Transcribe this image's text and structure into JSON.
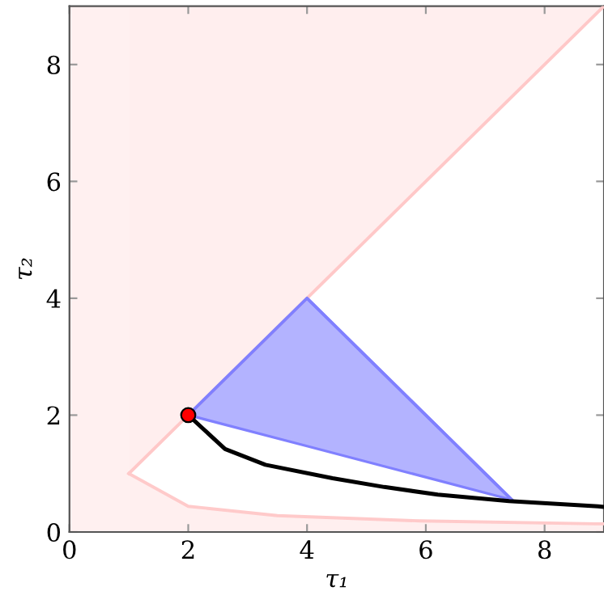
{
  "chart_data": {
    "type": "line",
    "xlabel": "τ₁",
    "ylabel": "τ₂",
    "xlim": [
      0,
      9
    ],
    "ylim": [
      0,
      9
    ],
    "xticks": [
      0,
      2,
      4,
      6,
      8
    ],
    "yticks": [
      0,
      2,
      4,
      6,
      8
    ],
    "grid": false,
    "legend": false,
    "bands": [
      {
        "axis": "x",
        "from": 0,
        "to": 1,
        "color": "#fff0f0"
      }
    ],
    "series": [
      {
        "color": "#ffc8c8",
        "x": [
          1,
          9
        ],
        "values": [
          1,
          9
        ],
        "lower": [
          1,
          9
        ],
        "upper": [
          9,
          9
        ]
      },
      {
        "color": "#ffcaca",
        "x": [
          1,
          2,
          3.5,
          5.9,
          8.85,
          9
        ],
        "values": [
          1,
          0.44,
          0.28,
          0.19,
          0.14,
          0.14
        ],
        "lower": [
          0,
          0,
          0,
          0,
          0,
          0
        ],
        "upper": [
          1,
          0.44,
          0.28,
          0.19,
          0.14,
          0.14
        ]
      },
      {
        "color": "#8080ff",
        "x": [
          2,
          4,
          7.45
        ],
        "values": [
          2,
          4,
          0.55
        ],
        "lower": [
          2,
          1.47,
          0.55
        ],
        "upper": [
          2,
          4,
          0.55
        ]
      },
      {
        "color": "#000000",
        "x": [
          2,
          2.62,
          3.3,
          4.43,
          5.3,
          6.2,
          7.4,
          8.9,
          9
        ],
        "values": [
          2,
          1.42,
          1.15,
          0.92,
          0.77,
          0.64,
          0.53,
          0.44,
          0.43
        ]
      },
      {
        "type": "scatter",
        "color": "#ff0000",
        "marker": "circle",
        "x": [
          2
        ],
        "values": [
          2
        ]
      }
    ]
  }
}
